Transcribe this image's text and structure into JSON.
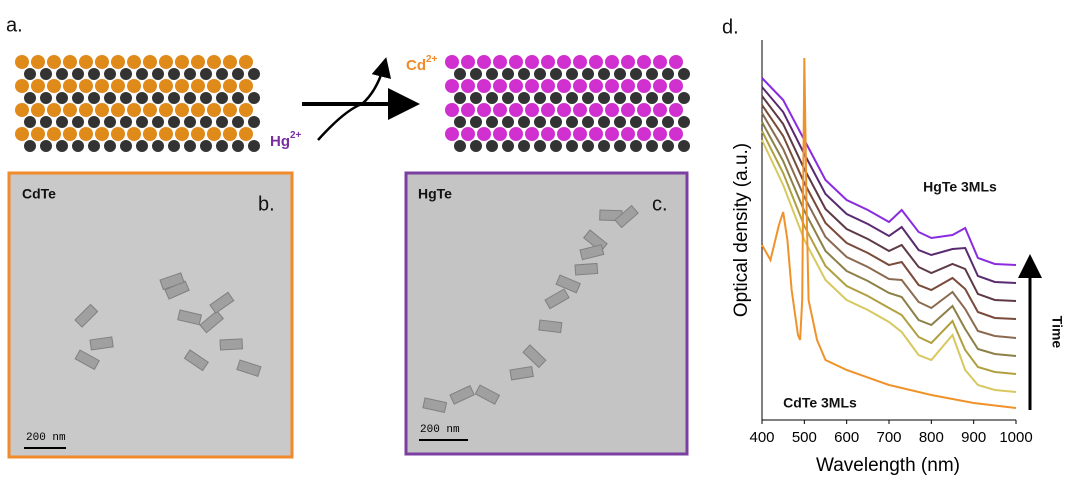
{
  "figure": {
    "panel_a": "a.",
    "panel_b": "b.",
    "panel_c": "c.",
    "panel_d": "d.",
    "ion_out": {
      "base": "Cd",
      "charge": "2+"
    },
    "ion_in": {
      "base": "Hg",
      "charge": "2+"
    },
    "tem_left": {
      "label": "CdTe",
      "scale": "200 nm"
    },
    "tem_right": {
      "label": "HgTe",
      "scale": "200 nm"
    }
  },
  "chart_data": {
    "type": "line",
    "xlabel": "Wavelength (nm)",
    "ylabel": "Optical density (a.u.)",
    "annotations": [
      "HgTe 3MLs",
      "CdTe 3MLs",
      "Time"
    ],
    "xlim": [
      400,
      1000
    ],
    "xticks": [
      400,
      500,
      600,
      700,
      800,
      900,
      1000
    ],
    "ylim": [
      0,
      380
    ],
    "x": [
      400,
      450,
      500,
      550,
      600,
      650,
      700,
      730,
      770,
      800,
      850,
      880,
      910,
      950,
      1000
    ],
    "series": [
      {
        "color": "#8a2be2",
        "values": [
          342,
          320,
          280,
          240,
          220,
          210,
          198,
          210,
          188,
          182,
          185,
          192,
          162,
          156,
          155
        ]
      },
      {
        "color": "#5a2a70",
        "values": [
          333,
          308,
          266,
          226,
          206,
          196,
          184,
          193,
          170,
          165,
          171,
          172,
          144,
          138,
          137
        ]
      },
      {
        "color": "#5e3a44",
        "values": [
          324,
          296,
          251,
          211,
          191,
          181,
          169,
          175,
          153,
          147,
          156,
          151,
          126,
          120,
          119
        ]
      },
      {
        "color": "#7a4a3a",
        "values": [
          315,
          284,
          237,
          197,
          177,
          167,
          155,
          158,
          135,
          130,
          142,
          131,
          108,
          102,
          101
        ]
      },
      {
        "color": "#8a6a50",
        "values": [
          307,
          271,
          223,
          183,
          163,
          153,
          141,
          140,
          118,
          112,
          128,
          111,
          89,
          84,
          82
        ]
      },
      {
        "color": "#8c8048",
        "values": [
          298,
          259,
          209,
          169,
          149,
          139,
          127,
          123,
          100,
          95,
          114,
          91,
          71,
          66,
          64
        ]
      },
      {
        "color": "#b0a040",
        "values": [
          289,
          247,
          194,
          154,
          134,
          124,
          112,
          105,
          83,
          77,
          99,
          70,
          53,
          48,
          46
        ]
      },
      {
        "color": "#d8c860",
        "values": [
          280,
          235,
          180,
          140,
          120,
          110,
          98,
          88,
          65,
          60,
          85,
          50,
          35,
          30,
          28
        ]
      },
      {
        "color": "#f0922a",
        "x": [
          400,
          420,
          440,
          450,
          460,
          470,
          485,
          490,
          495,
          500,
          505,
          510,
          530,
          550,
          600,
          700,
          800,
          900,
          1000
        ],
        "values": [
          175,
          160,
          195,
          208,
          180,
          130,
          85,
          80,
          120,
          362,
          220,
          120,
          80,
          60,
          50,
          35,
          25,
          17,
          12
        ]
      }
    ]
  }
}
